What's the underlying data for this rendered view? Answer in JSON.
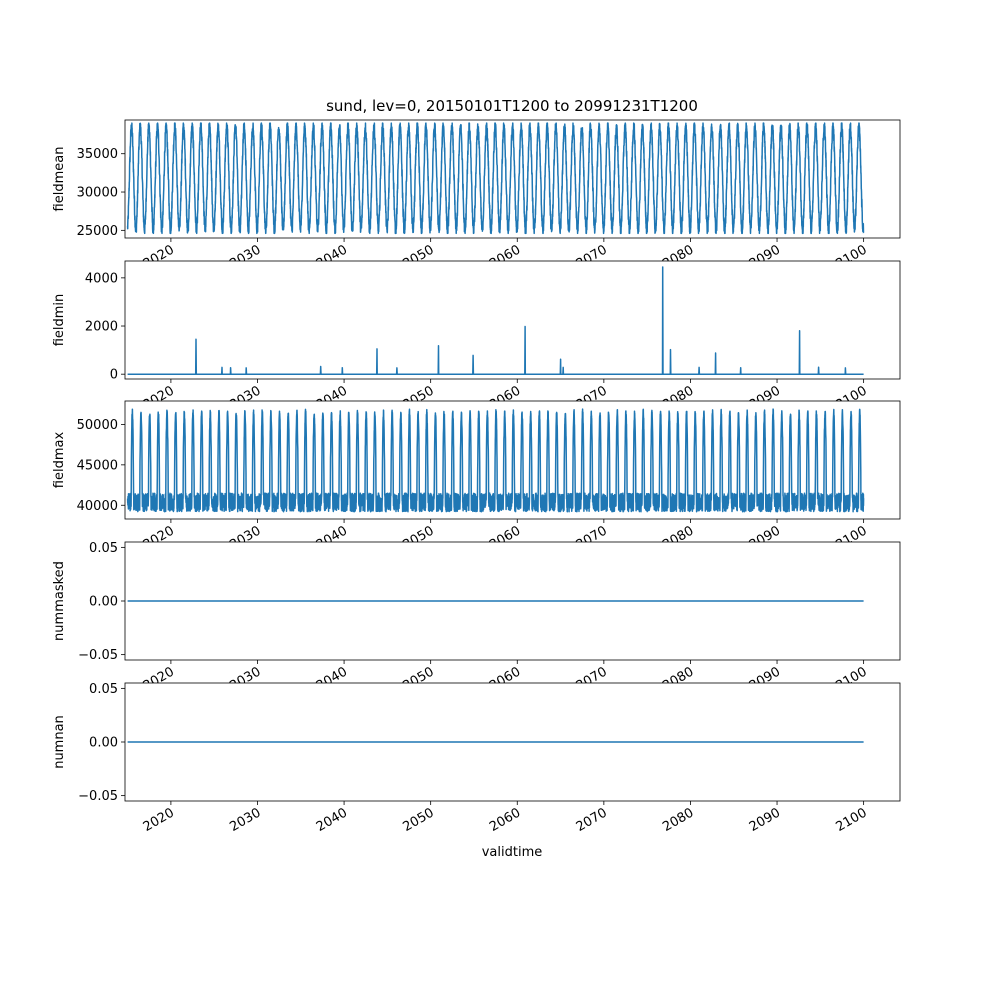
{
  "title": "sund, lev=0, 20150101T1200 to 20991231T1200",
  "xlabel": "validtime",
  "line_color": "#1f77b4",
  "x_ticks": [
    "2020",
    "2030",
    "2040",
    "2050",
    "2060",
    "2070",
    "2080",
    "2090",
    "2100"
  ],
  "chart_data": [
    {
      "type": "line",
      "ylabel": "fieldmean",
      "xlim": [
        2014.7,
        2104.2
      ],
      "ylim": [
        24000,
        39400
      ],
      "y_ticks": [
        25000,
        30000,
        35000
      ],
      "y_tick_labels": [
        "25000",
        "30000",
        "35000"
      ],
      "pattern": "seasonal oscillation, ~85 annual cycles",
      "series": [
        {
          "x_range": [
            2015.0,
            2100.0
          ],
          "y_min": 24600,
          "y_max": 39000,
          "y_mid": 31800
        }
      ]
    },
    {
      "type": "line",
      "ylabel": "fieldmin",
      "xlim": [
        2014.7,
        2104.2
      ],
      "ylim": [
        -200,
        4700
      ],
      "y_ticks": [
        0,
        2000,
        4000
      ],
      "y_tick_labels": [
        "0",
        "2000",
        "4000"
      ],
      "pattern": "baseline 0 with isolated spikes",
      "series": [
        {
          "x_range": [
            2015.0,
            2100.0
          ],
          "baseline": 0,
          "spikes": [
            {
              "x": 2022.9,
              "y": 1450
            },
            {
              "x": 2025.9,
              "y": 280
            },
            {
              "x": 2026.9,
              "y": 270
            },
            {
              "x": 2028.7,
              "y": 260
            },
            {
              "x": 2037.3,
              "y": 320
            },
            {
              "x": 2039.8,
              "y": 270
            },
            {
              "x": 2043.8,
              "y": 1050
            },
            {
              "x": 2046.1,
              "y": 260
            },
            {
              "x": 2050.9,
              "y": 1180
            },
            {
              "x": 2054.9,
              "y": 780
            },
            {
              "x": 2060.9,
              "y": 1980
            },
            {
              "x": 2065.0,
              "y": 620
            },
            {
              "x": 2065.3,
              "y": 280
            },
            {
              "x": 2076.8,
              "y": 4450
            },
            {
              "x": 2077.7,
              "y": 1020
            },
            {
              "x": 2081.0,
              "y": 280
            },
            {
              "x": 2082.9,
              "y": 880
            },
            {
              "x": 2085.8,
              "y": 270
            },
            {
              "x": 2092.6,
              "y": 1800
            },
            {
              "x": 2094.8,
              "y": 290
            },
            {
              "x": 2097.9,
              "y": 260
            }
          ]
        }
      ]
    },
    {
      "type": "line",
      "ylabel": "fieldmax",
      "xlim": [
        2014.7,
        2104.2
      ],
      "ylim": [
        38300,
        52900
      ],
      "y_ticks": [
        40000,
        45000,
        50000
      ],
      "y_tick_labels": [
        "40000",
        "45000",
        "50000"
      ],
      "pattern": "annual peaks near 51800, noisy floor 39000-41500",
      "series": [
        {
          "x_range": [
            2015.0,
            2100.0
          ],
          "y_min": 39000,
          "y_max": 51900
        }
      ]
    },
    {
      "type": "line",
      "ylabel": "nummasked",
      "xlim": [
        2014.7,
        2104.2
      ],
      "ylim": [
        -0.055,
        0.055
      ],
      "y_ticks": [
        -0.05,
        0.0,
        0.05
      ],
      "y_tick_labels": [
        "−0.05",
        "0.00",
        "0.05"
      ],
      "series": [
        {
          "x": [
            2015.0,
            2100.0
          ],
          "y": [
            0.0,
            0.0
          ]
        }
      ]
    },
    {
      "type": "line",
      "ylabel": "numnan",
      "xlim": [
        2014.7,
        2104.2
      ],
      "ylim": [
        -0.055,
        0.055
      ],
      "y_ticks": [
        -0.05,
        0.0,
        0.05
      ],
      "y_tick_labels": [
        "−0.05",
        "0.00",
        "0.05"
      ],
      "series": [
        {
          "x": [
            2015.0,
            2100.0
          ],
          "y": [
            0.0,
            0.0
          ]
        }
      ]
    }
  ]
}
